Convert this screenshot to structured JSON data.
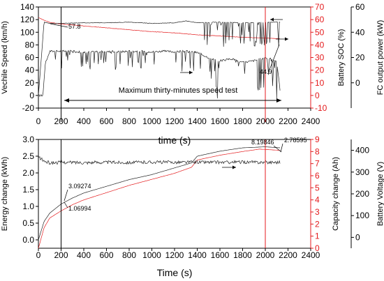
{
  "chart_data": [
    {
      "type": "line",
      "xlabel": "time (s)",
      "xlim": [
        0,
        2400
      ],
      "x_ticks": [
        "0",
        "200",
        "400",
        "600",
        "800",
        "1000",
        "1200",
        "1400",
        "1600",
        "1800",
        "2000",
        "2200",
        "2400"
      ],
      "y_axes": [
        {
          "label": "Vechile Speed (km/h)",
          "ylim": [
            -20,
            140
          ],
          "ticks": [
            "-20",
            "0",
            "20",
            "40",
            "60",
            "80",
            "100",
            "120",
            "140"
          ],
          "color": "#000000"
        },
        {
          "label": "Battery SOC (%)",
          "ylim": [
            -10,
            70
          ],
          "ticks": [
            "-10",
            "0",
            "10",
            "20",
            "30",
            "40",
            "50",
            "60",
            "70"
          ],
          "color": "#e41a1c"
        },
        {
          "label": "FC output power (kW)",
          "ylim": [
            -20,
            60
          ],
          "ticks": [
            "0",
            "20",
            "40",
            "60"
          ],
          "color": "#000000"
        }
      ],
      "series": [
        {
          "axis": "Vechile Speed (km/h)",
          "color": "#222222",
          "x": [
            0,
            40,
            60,
            100,
            200,
            300,
            400,
            500,
            600,
            700,
            800,
            900,
            1000,
            1100,
            1200,
            1300,
            1400,
            1500,
            1600,
            1700,
            1800,
            1900,
            2000,
            2100,
            2130
          ],
          "y": [
            0,
            0,
            50,
            70,
            70,
            70,
            68,
            69,
            70,
            69,
            70,
            70,
            69,
            70,
            69,
            70,
            68,
            60,
            55,
            58,
            52,
            55,
            60,
            55,
            10
          ]
        },
        {
          "axis": "Battery SOC (%)",
          "color": "#e41a1c",
          "x": [
            0,
            100,
            200,
            400,
            600,
            800,
            1000,
            1200,
            1400,
            1600,
            1800,
            2000,
            2130
          ],
          "y": [
            61.5,
            57.8,
            56.5,
            55,
            53.5,
            52,
            50.5,
            49.5,
            48,
            47,
            46,
            45.4,
            44.9
          ]
        },
        {
          "axis": "FC output power (kW)",
          "color": "#222222",
          "x": [
            0,
            50,
            100,
            200,
            400,
            600,
            800,
            1000,
            1200,
            1300,
            1400,
            1600,
            1800,
            2000,
            2130
          ],
          "y": [
            -10,
            48,
            47,
            47,
            47.5,
            47.5,
            48,
            47,
            47.5,
            49,
            47.5,
            48,
            47.5,
            48,
            48
          ]
        }
      ],
      "annotations": [
        "57.8",
        "44.9",
        "Maximum thirty-minutes speed test"
      ],
      "vlines": [
        {
          "x": 200,
          "color": "#000000"
        },
        {
          "x": 2000,
          "color": "#e41a1c"
        }
      ]
    },
    {
      "type": "line",
      "xlabel": "Time (s)",
      "xlim": [
        0,
        2400
      ],
      "x_ticks": [
        "0",
        "200",
        "400",
        "600",
        "800",
        "1000",
        "1200",
        "1400",
        "1600",
        "1800",
        "2000",
        "2200",
        "2400"
      ],
      "y_axes": [
        {
          "label": "Energy change (kWh)",
          "ylim": [
            -0.25,
            3.0
          ],
          "ticks": [
            "0.0",
            "0.5",
            "1.0",
            "1.5",
            "2.0",
            "2.5",
            "3.0"
          ],
          "color": "#000000"
        },
        {
          "label": "Capacity change (Ah)",
          "ylim": [
            0,
            9
          ],
          "ticks": [
            "0",
            "1",
            "2",
            "3",
            "4",
            "5",
            "6",
            "7",
            "8",
            "9"
          ],
          "color": "#e41a1c"
        },
        {
          "label": "Battery Voltage (V)",
          "ylim": [
            -50,
            450
          ],
          "ticks": [
            "0",
            "100",
            "200",
            "300",
            "400"
          ],
          "color": "#000000"
        }
      ],
      "series": [
        {
          "axis": "Energy change (kWh)",
          "color": "#222222",
          "x": [
            0,
            50,
            100,
            200,
            300,
            400,
            600,
            800,
            1000,
            1200,
            1350,
            1400,
            1600,
            1800,
            2000,
            2130
          ],
          "y": [
            0,
            0.55,
            0.8,
            1.07,
            1.25,
            1.4,
            1.6,
            1.8,
            1.95,
            2.15,
            2.3,
            2.5,
            2.65,
            2.75,
            2.78,
            2.75
          ]
        },
        {
          "axis": "Capacity change (Ah)",
          "color": "#e41a1c",
          "x": [
            0,
            50,
            100,
            200,
            300,
            400,
            600,
            800,
            1000,
            1200,
            1350,
            1400,
            1600,
            1800,
            1950,
            2130
          ],
          "y": [
            0,
            1.7,
            2.5,
            3.09,
            3.6,
            4.0,
            4.6,
            5.2,
            5.7,
            6.2,
            6.7,
            7.3,
            7.7,
            8.0,
            8.2,
            8.1
          ]
        },
        {
          "axis": "Battery Voltage (V)",
          "color": "#222222",
          "x": [
            0,
            50,
            100,
            200,
            400,
            600,
            800,
            1000,
            1200,
            1400,
            1600,
            1800,
            2000,
            2130
          ],
          "y": [
            370,
            350,
            342,
            345,
            344,
            345,
            344,
            346,
            345,
            346,
            345,
            346,
            345,
            346
          ]
        }
      ],
      "annotations": [
        "3.09274",
        "1.06994",
        "8.19846",
        "2.78595"
      ],
      "vlines": [
        {
          "x": 200,
          "color": "#000000"
        },
        {
          "x": 2000,
          "color": "#e41a1c"
        }
      ]
    }
  ]
}
